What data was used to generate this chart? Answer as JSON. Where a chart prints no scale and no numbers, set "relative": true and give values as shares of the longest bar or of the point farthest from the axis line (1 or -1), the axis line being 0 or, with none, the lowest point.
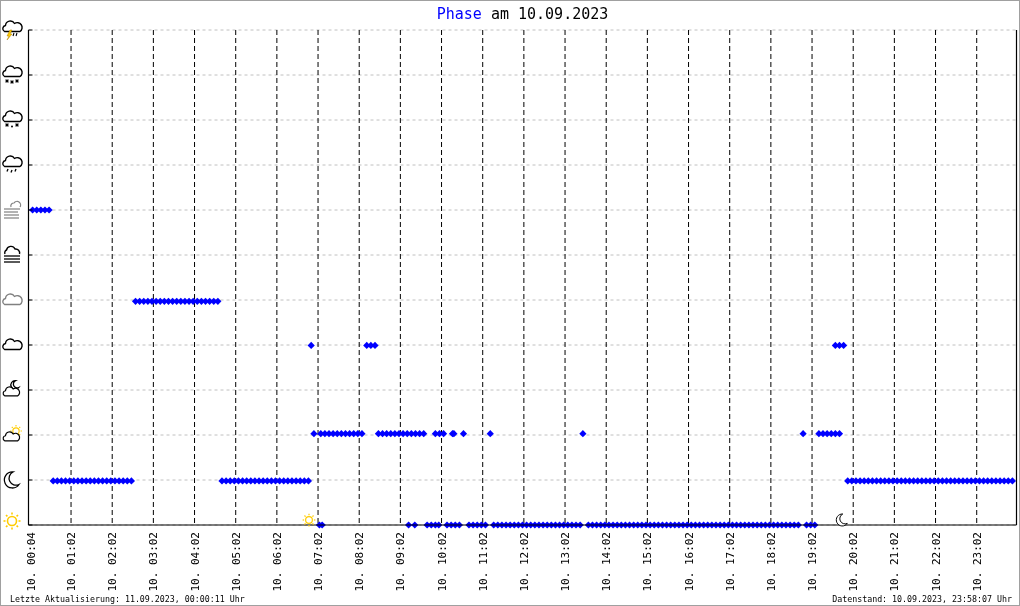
{
  "chart_data": {
    "type": "scatter",
    "title": "Phase am 10.09.2023",
    "annotations": [
      "Letzte Aktualisierung: 11.09.2023, 00:00:11 Uhr",
      "Datenstand: 10.09.2023, 23:58:07 Uhr"
    ],
    "relative": true,
    "x": [
      "2023-09-10T00:06",
      "2023-09-10T00:12",
      "2023-09-10T00:18",
      "2023-09-10T00:24",
      "2023-09-10T00:30",
      "2023-09-10T00:36",
      "2023-09-10T00:42",
      "2023-09-10T00:48",
      "2023-09-10T00:54",
      "2023-09-10T01:00",
      "2023-09-10T01:06",
      "2023-09-10T01:12",
      "2023-09-10T01:18",
      "2023-09-10T01:24",
      "2023-09-10T01:30",
      "2023-09-10T01:36",
      "2023-09-10T01:42",
      "2023-09-10T01:48",
      "2023-09-10T01:54",
      "2023-09-10T02:00",
      "2023-09-10T02:06",
      "2023-09-10T02:12",
      "2023-09-10T02:18",
      "2023-09-10T02:24",
      "2023-09-10T02:30",
      "2023-09-10T02:36",
      "2023-09-10T02:42",
      "2023-09-10T02:48",
      "2023-09-10T02:54",
      "2023-09-10T03:00",
      "2023-09-10T03:06",
      "2023-09-10T03:12",
      "2023-09-10T03:18",
      "2023-09-10T03:24",
      "2023-09-10T03:30",
      "2023-09-10T03:36",
      "2023-09-10T03:42",
      "2023-09-10T03:48",
      "2023-09-10T03:54",
      "2023-09-10T04:00",
      "2023-09-10T04:06",
      "2023-09-10T04:12",
      "2023-09-10T04:18",
      "2023-09-10T04:24",
      "2023-09-10T04:30",
      "2023-09-10T04:36",
      "2023-09-10T04:42",
      "2023-09-10T04:48",
      "2023-09-10T04:54",
      "2023-09-10T05:00",
      "2023-09-10T05:06",
      "2023-09-10T05:12",
      "2023-09-10T05:18",
      "2023-09-10T05:24",
      "2023-09-10T05:30",
      "2023-09-10T05:36",
      "2023-09-10T05:42",
      "2023-09-10T05:48",
      "2023-09-10T05:54",
      "2023-09-10T06:00",
      "2023-09-10T06:06",
      "2023-09-10T06:12",
      "2023-09-10T06:18",
      "2023-09-10T06:24",
      "2023-09-10T06:30",
      "2023-09-10T06:36",
      "2023-09-10T06:42",
      "2023-09-10T06:48",
      "2023-09-10T06:52",
      "2023-09-10T06:56",
      "2023-09-10T07:04",
      "2023-09-10T07:08",
      "2023-09-10T07:06",
      "2023-09-10T07:12",
      "2023-09-10T07:18",
      "2023-09-10T07:24",
      "2023-09-10T07:30",
      "2023-09-10T07:36",
      "2023-09-10T07:42",
      "2023-09-10T07:48",
      "2023-09-10T07:54",
      "2023-09-10T08:00",
      "2023-09-10T08:06",
      "2023-09-10T08:13",
      "2023-09-10T08:19",
      "2023-09-10T08:25",
      "2023-09-10T08:30",
      "2023-09-10T08:36",
      "2023-09-10T08:42",
      "2023-09-10T08:48",
      "2023-09-10T08:54",
      "2023-09-10T09:00",
      "2023-09-10T09:06",
      "2023-09-10T09:12",
      "2023-09-10T09:18",
      "2023-09-10T09:24",
      "2023-09-10T09:30",
      "2023-09-10T09:36",
      "2023-09-10T09:14",
      "2023-09-10T09:23",
      "2023-09-10T09:41",
      "2023-09-10T09:47",
      "2023-09-10T09:53",
      "2023-09-10T09:58",
      "2023-09-10T09:53",
      "2023-09-10T09:59",
      "2023-09-10T10:05",
      "2023-09-10T10:10",
      "2023-09-10T10:16",
      "2023-09-10T10:22",
      "2023-09-10T10:28",
      "2023-09-10T10:18",
      "2023-09-10T10:20",
      "2023-09-10T10:34",
      "2023-09-10T11:13",
      "2023-09-10T13:28",
      "2023-09-10T18:49",
      "2023-09-10T10:42",
      "2023-09-10T10:48",
      "2023-09-10T10:54",
      "2023-09-10T11:00",
      "2023-09-10T11:06",
      "2023-09-10T11:18",
      "2023-09-10T11:24",
      "2023-09-10T11:30",
      "2023-09-10T11:36",
      "2023-09-10T11:42",
      "2023-09-10T11:48",
      "2023-09-10T11:54",
      "2023-09-10T12:00",
      "2023-09-10T12:06",
      "2023-09-10T12:12",
      "2023-09-10T12:18",
      "2023-09-10T12:24",
      "2023-09-10T12:30",
      "2023-09-10T12:36",
      "2023-09-10T12:42",
      "2023-09-10T12:48",
      "2023-09-10T12:54",
      "2023-09-10T13:00",
      "2023-09-10T13:06",
      "2023-09-10T13:12",
      "2023-09-10T13:18",
      "2023-09-10T13:24",
      "2023-09-10T13:36",
      "2023-09-10T13:42",
      "2023-09-10T13:48",
      "2023-09-10T13:54",
      "2023-09-10T14:00",
      "2023-09-10T14:06",
      "2023-09-10T14:12",
      "2023-09-10T14:18",
      "2023-09-10T14:24",
      "2023-09-10T14:30",
      "2023-09-10T14:36",
      "2023-09-10T14:42",
      "2023-09-10T14:48",
      "2023-09-10T14:54",
      "2023-09-10T15:00",
      "2023-09-10T15:06",
      "2023-09-10T15:12",
      "2023-09-10T15:18",
      "2023-09-10T15:24",
      "2023-09-10T15:30",
      "2023-09-10T15:36",
      "2023-09-10T15:42",
      "2023-09-10T15:48",
      "2023-09-10T15:54",
      "2023-09-10T16:00",
      "2023-09-10T16:06",
      "2023-09-10T16:12",
      "2023-09-10T16:18",
      "2023-09-10T16:24",
      "2023-09-10T16:30",
      "2023-09-10T16:36",
      "2023-09-10T16:42",
      "2023-09-10T16:48",
      "2023-09-10T16:54",
      "2023-09-10T17:00",
      "2023-09-10T17:06",
      "2023-09-10T17:12",
      "2023-09-10T17:18",
      "2023-09-10T17:24",
      "2023-09-10T17:30",
      "2023-09-10T17:36",
      "2023-09-10T17:42",
      "2023-09-10T17:48",
      "2023-09-10T17:54",
      "2023-09-10T18:00",
      "2023-09-10T18:06",
      "2023-09-10T18:12",
      "2023-09-10T18:18",
      "2023-09-10T18:24",
      "2023-09-10T18:30",
      "2023-09-10T18:36",
      "2023-09-10T18:42",
      "2023-09-10T18:54",
      "2023-09-10T19:00",
      "2023-09-10T19:06",
      "2023-09-10T19:12",
      "2023-09-10T19:18",
      "2023-09-10T19:24",
      "2023-09-10T19:30",
      "2023-09-10T19:36",
      "2023-09-10T19:42",
      "2023-09-10T19:36",
      "2023-09-10T19:42",
      "2023-09-10T19:48",
      "2023-09-10T19:54",
      "2023-09-10T20:00",
      "2023-09-10T20:06",
      "2023-09-10T20:12",
      "2023-09-10T20:18",
      "2023-09-10T20:24",
      "2023-09-10T20:30",
      "2023-09-10T20:36",
      "2023-09-10T20:42",
      "2023-09-10T20:48",
      "2023-09-10T20:54",
      "2023-09-10T21:00",
      "2023-09-10T21:06",
      "2023-09-10T21:12",
      "2023-09-10T21:18",
      "2023-09-10T21:24",
      "2023-09-10T21:30",
      "2023-09-10T21:36",
      "2023-09-10T21:42",
      "2023-09-10T21:48",
      "2023-09-10T21:54",
      "2023-09-10T22:00",
      "2023-09-10T22:06",
      "2023-09-10T22:12",
      "2023-09-10T22:18",
      "2023-09-10T22:24",
      "2023-09-10T22:30",
      "2023-09-10T22:36",
      "2023-09-10T22:42",
      "2023-09-10T22:48",
      "2023-09-10T22:54",
      "2023-09-10T23:00",
      "2023-09-10T23:06",
      "2023-09-10T23:12",
      "2023-09-10T23:18",
      "2023-09-10T23:24",
      "2023-09-10T23:30",
      "2023-09-10T23:36",
      "2023-09-10T23:42",
      "2023-09-10T23:48",
      "2023-09-10T23:54"
    ],
    "series": [
      {
        "color": "#0000ff",
        "values": [
          1,
          1,
          1,
          1,
          1,
          0.14,
          0.14,
          0.14,
          0.14,
          0.14,
          0.14,
          0.14,
          0.14,
          0.14,
          0.14,
          0.14,
          0.14,
          0.14,
          0.14,
          0.14,
          0.14,
          0.14,
          0.14,
          0.14,
          0.14,
          0.71,
          0.71,
          0.71,
          0.71,
          0.71,
          0.71,
          0.71,
          0.71,
          0.71,
          0.71,
          0.71,
          0.71,
          0.71,
          0.71,
          0.71,
          0.71,
          0.71,
          0.71,
          0.71,
          0.71,
          0.71,
          0.14,
          0.14,
          0.14,
          0.14,
          0.14,
          0.14,
          0.14,
          0.14,
          0.14,
          0.14,
          0.14,
          0.14,
          0.14,
          0.14,
          0.14,
          0.14,
          0.14,
          0.14,
          0.14,
          0.14,
          0.14,
          0.14,
          0.57,
          0.29,
          0,
          0,
          0.29,
          0.29,
          0.29,
          0.29,
          0.29,
          0.29,
          0.29,
          0.29,
          0.29,
          0.29,
          0.29,
          0.57,
          0.57,
          0.57,
          0.29,
          0.29,
          0.29,
          0.29,
          0.29,
          0.29,
          0.29,
          0.29,
          0.29,
          0.29,
          0.29,
          0.29,
          0,
          0,
          0,
          0,
          0,
          0,
          0.29,
          0.29,
          0.29,
          0,
          0,
          0,
          0,
          0.29,
          0.29,
          0.29,
          0.29,
          0.29,
          0.29,
          0,
          0,
          0,
          0,
          0,
          0,
          0,
          0,
          0,
          0,
          0,
          0,
          0,
          0,
          0,
          0,
          0,
          0,
          0,
          0,
          0,
          0,
          0,
          0,
          0,
          0,
          0,
          0,
          0,
          0,
          0,
          0,
          0,
          0,
          0,
          0,
          0,
          0,
          0,
          0,
          0,
          0,
          0,
          0,
          0,
          0,
          0,
          0,
          0,
          0,
          0,
          0,
          0,
          0,
          0,
          0,
          0,
          0,
          0,
          0,
          0,
          0,
          0,
          0,
          0,
          0,
          0,
          0,
          0,
          0,
          0,
          0,
          0,
          0,
          0,
          0,
          0,
          0,
          0,
          0,
          0,
          0,
          0.29,
          0.29,
          0.29,
          0.29,
          0.29,
          0.29,
          0.57,
          0.57,
          0.57,
          0.14,
          0.14,
          0.14,
          0.14,
          0.14,
          0.14,
          0.14,
          0.14,
          0.14,
          0.14,
          0.14,
          0.14,
          0.14,
          0.14,
          0.14,
          0.14,
          0.14,
          0.14,
          0.14,
          0.14,
          0.14,
          0.14,
          0.14,
          0.14,
          0.14,
          0.14,
          0.14,
          0.14,
          0.14,
          0.14,
          0.14,
          0.14,
          0.14,
          0.14,
          0.14,
          0.14,
          0.14,
          0.14,
          0.14,
          0.14,
          0.14
        ]
      }
    ],
    "xlim": [
      "2023-09-10T00:00",
      "2023-09-11T00:00"
    ],
    "xticks": [
      {
        "value": "2023-09-10T00:04",
        "label": "10. 00:04"
      },
      {
        "value": "2023-09-10T01:02",
        "label": "10. 01:02"
      },
      {
        "value": "2023-09-10T02:02",
        "label": "10. 02:02"
      },
      {
        "value": "2023-09-10T03:02",
        "label": "10. 03:02"
      },
      {
        "value": "2023-09-10T04:02",
        "label": "10. 04:02"
      },
      {
        "value": "2023-09-10T05:02",
        "label": "10. 05:02"
      },
      {
        "value": "2023-09-10T06:02",
        "label": "10. 06:02"
      },
      {
        "value": "2023-09-10T07:02",
        "label": "10. 07:02"
      },
      {
        "value": "2023-09-10T08:02",
        "label": "10. 08:02"
      },
      {
        "value": "2023-09-10T09:02",
        "label": "10. 09:02"
      },
      {
        "value": "2023-09-10T10:02",
        "label": "10. 10:02"
      },
      {
        "value": "2023-09-10T11:02",
        "label": "10. 11:02"
      },
      {
        "value": "2023-09-10T12:02",
        "label": "10. 12:02"
      },
      {
        "value": "2023-09-10T13:02",
        "label": "10. 13:02"
      },
      {
        "value": "2023-09-10T14:02",
        "label": "10. 14:02"
      },
      {
        "value": "2023-09-10T15:02",
        "label": "10. 15:02"
      },
      {
        "value": "2023-09-10T16:02",
        "label": "10. 16:02"
      },
      {
        "value": "2023-09-10T17:02",
        "label": "10. 17:02"
      },
      {
        "value": "2023-09-10T18:02",
        "label": "10. 18:02"
      },
      {
        "value": "2023-09-10T19:02",
        "label": "10. 19:02"
      },
      {
        "value": "2023-09-10T20:02",
        "label": "10. 20:02"
      },
      {
        "value": "2023-09-10T21:02",
        "label": "10. 21:02"
      },
      {
        "value": "2023-09-10T22:02",
        "label": "10. 22:02"
      },
      {
        "value": "2023-09-10T23:02",
        "label": "10. 23:02"
      }
    ],
    "grid": true,
    "marker": "diamond"
  }
}
